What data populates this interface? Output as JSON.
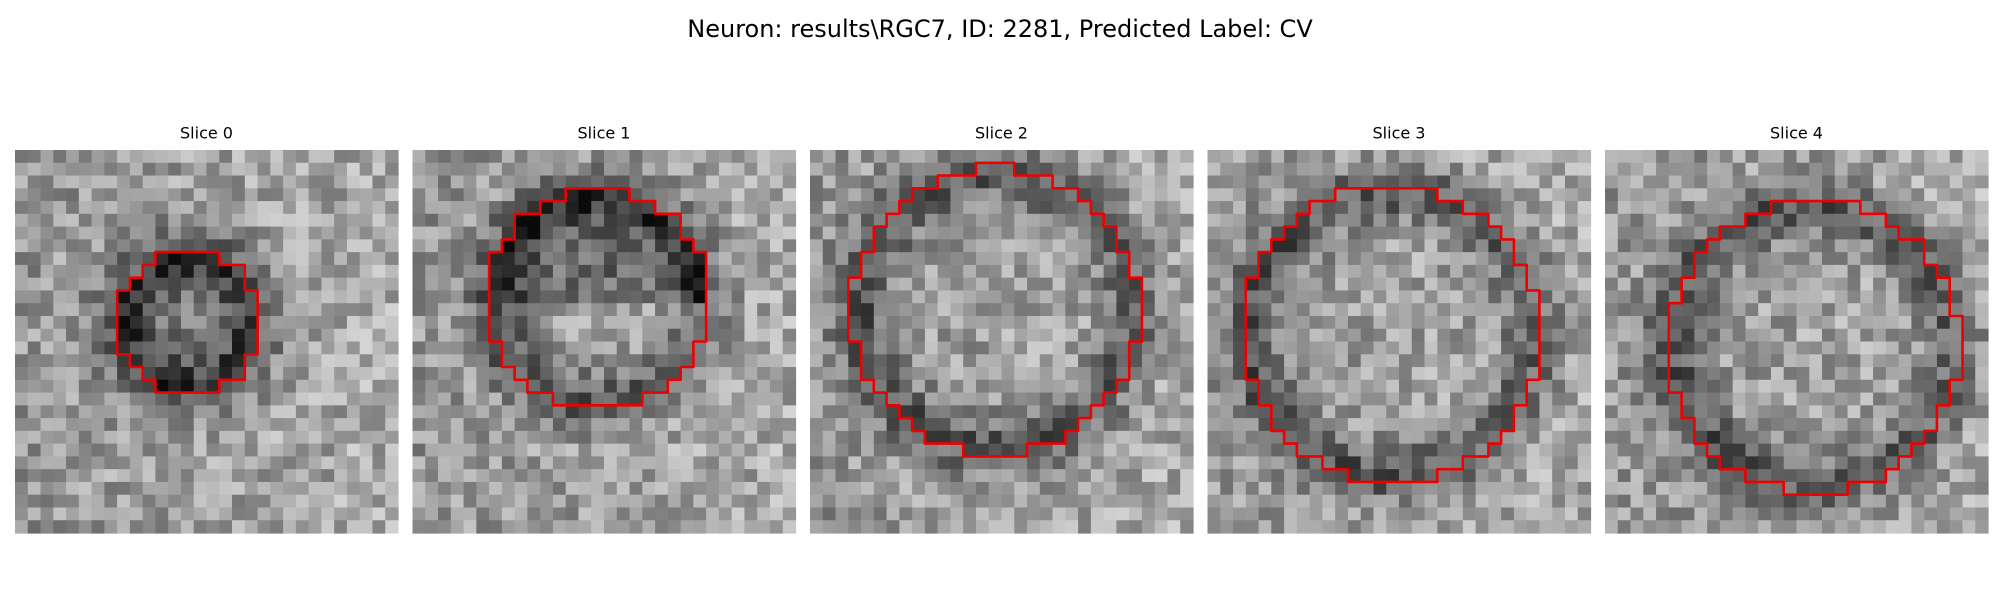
{
  "title": "Neuron: results\\RGC7, ID: 2281, Predicted Label: CV",
  "panels": [
    {
      "title": "Slice 0"
    },
    {
      "title": "Slice 1"
    },
    {
      "title": "Slice 2"
    },
    {
      "title": "Slice 3"
    },
    {
      "title": "Slice 4"
    }
  ]
}
